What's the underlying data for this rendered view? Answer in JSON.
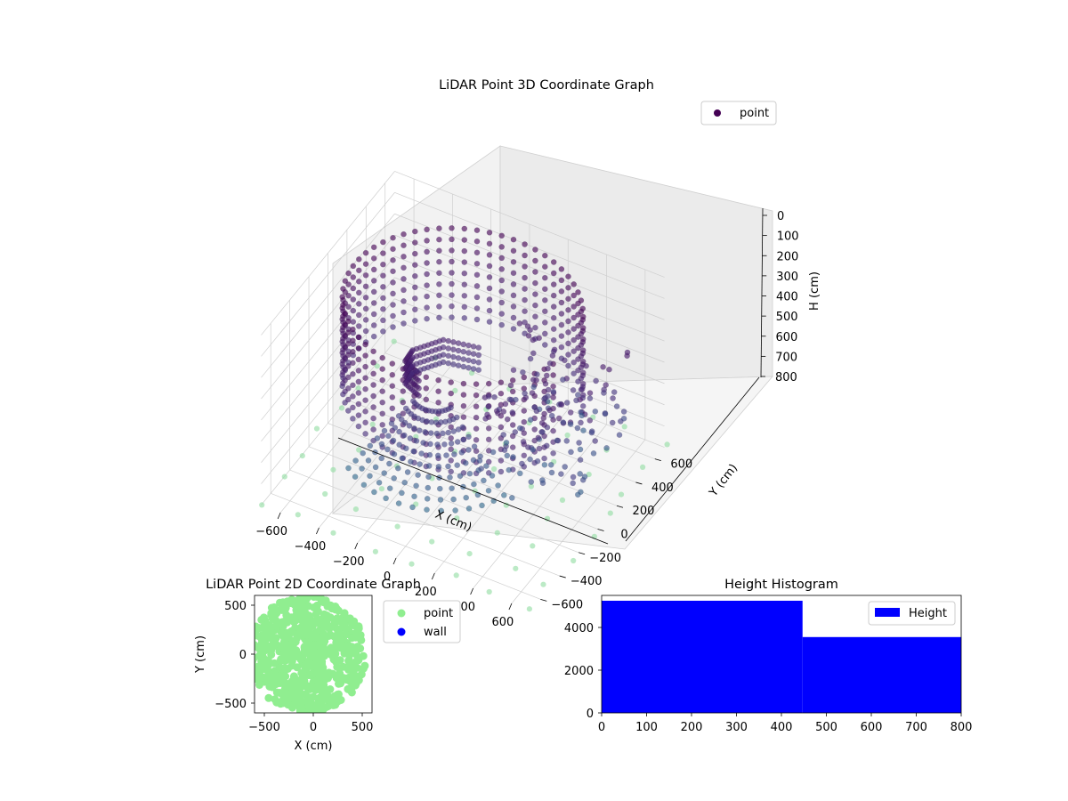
{
  "chart_data": [
    {
      "id": "lidar3d",
      "type": "scatter",
      "projection": "3d",
      "title": "LiDAR Point 3D Coordinate Graph",
      "xlabel": "X (cm)",
      "ylabel": "Y (cm)",
      "zlabel": "H (cm)",
      "xlim": [
        -700,
        700
      ],
      "ylim": [
        -700,
        700
      ],
      "zlim": [
        800,
        0
      ],
      "xticks": [
        "−600",
        "−400",
        "−200",
        "0",
        "200",
        "400",
        "600"
      ],
      "yticks": [
        "−600",
        "−400",
        "−200",
        "0",
        "200",
        "400",
        "600"
      ],
      "zticks": [
        "0",
        "100",
        "200",
        "300",
        "400",
        "500",
        "600",
        "700",
        "800"
      ],
      "z_axis_inverted": true,
      "legend": {
        "position": "top-right",
        "entries": [
          {
            "name": "point",
            "color": "#440154"
          }
        ]
      },
      "colormap": "viridis (color by height)",
      "structures": {
        "wall_ring": {
          "radius": 560,
          "h_range": [
            0,
            420
          ],
          "columns": 54,
          "rows": 9,
          "angle_start_deg": 25,
          "angle_end_deg": 345
        },
        "floor_fan": {
          "rays": 14,
          "angle_start_deg": 230,
          "angle_end_deg": 345,
          "r_range": [
            150,
            620
          ]
        },
        "inner_slab": {
          "points": [
            [
              -80,
              -300,
              180
            ],
            [
              -200,
              -200,
              220
            ],
            [
              -260,
              0,
              300
            ],
            [
              -200,
              200,
              340
            ],
            [
              -40,
              300,
              380
            ]
          ]
        },
        "clutter": {
          "x_range": [
            100,
            650
          ],
          "y_range": [
            -200,
            500
          ],
          "h_range": [
            250,
            700
          ],
          "count": 160
        },
        "ground_grid": {
          "step": 200,
          "h": 790,
          "spacing_note": "light green ground returns"
        }
      }
    },
    {
      "id": "lidar2d",
      "type": "scatter",
      "title": "LiDAR Point 2D Coordinate Graph",
      "xlabel": "X (cm)",
      "ylabel": "Y (cm)",
      "xlim": [
        -600,
        600
      ],
      "ylim": [
        -600,
        600
      ],
      "xticks": [
        "−500",
        "0",
        "500"
      ],
      "yticks": [
        "−500",
        "0",
        "500"
      ],
      "legend": {
        "position": "outside right",
        "entries": [
          {
            "name": "point",
            "color": "#90ee90"
          },
          {
            "name": "wall",
            "color": "#0000ff"
          }
        ]
      }
    },
    {
      "id": "histogram",
      "type": "bar",
      "title": "Height Histogram",
      "xlabel": "",
      "ylabel": "",
      "xlim": [
        0,
        800
      ],
      "ylim": [
        0,
        5500
      ],
      "xticks": [
        "0",
        "100",
        "200",
        "300",
        "400",
        "500",
        "600",
        "700",
        "800"
      ],
      "yticks": [
        "0",
        "2000",
        "4000"
      ],
      "bins": [
        {
          "start": 0,
          "end": 447,
          "count": 5250
        },
        {
          "start": 447,
          "end": 800,
          "count": 3550
        }
      ],
      "series": [
        {
          "name": "Height",
          "color": "#0000ff"
        }
      ],
      "legend": {
        "position": "top-right"
      }
    }
  ]
}
